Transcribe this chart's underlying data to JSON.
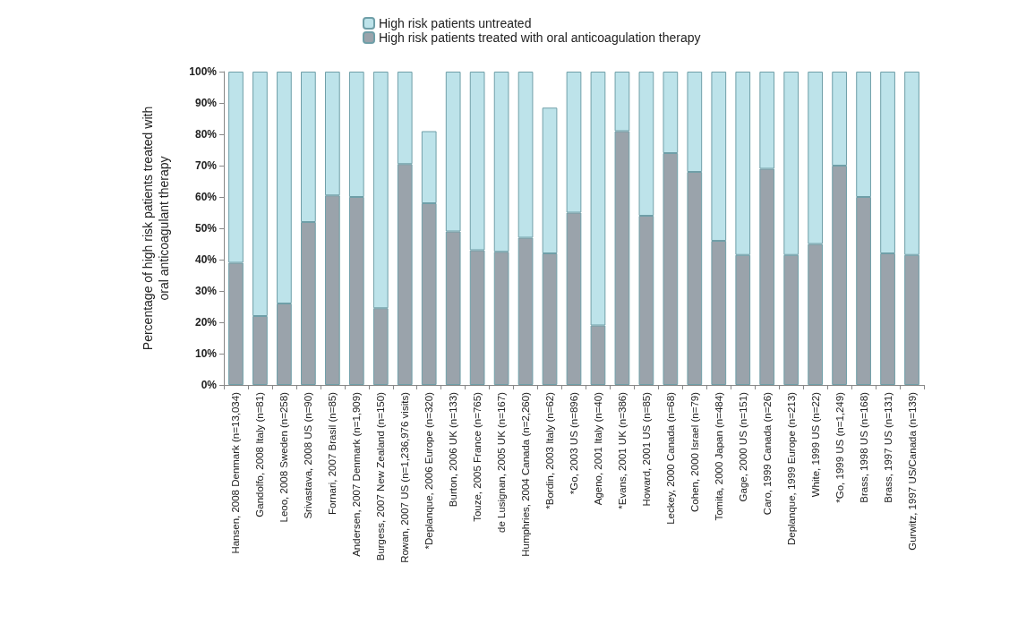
{
  "chart_data": {
    "type": "bar",
    "stacked": true,
    "ylabel": "Percentage of high risk patients treated with\noral anticoagulant therapy",
    "categories": [
      "Hansen, 2008 Denmark (n=13,034)",
      "Gandolfo, 2008 Italy (n=81)",
      "Leoo, 2008 Sweden (n=258)",
      "Srivastava, 2008 US (n=90)",
      "Fornari, 2007 Brasil (n=85)",
      "Andersen, 2007 Denmark (n=1,909)",
      "Burgess, 2007 New Zealand (n=150)",
      "Rowan, 2007 US (n=1,236,976 visits)",
      "*Deplanque, 2006 Europe (n=320)",
      "Burton, 2006 UK (n=133)",
      "Touze, 2005 France (n=765)",
      "de Lusignan, 2005 UK (n=167)",
      "Humphries, 2004 Canada (n=2,260)",
      "*Bordin, 2003 Italy (n=62)",
      "*Go, 2003 US (n=896)",
      "Ageno, 2001 Italy (n=40)",
      "*Evans, 2001 UK (n=386)",
      "Howard, 2001 US (n=85)",
      "Leckey, 2000 Canada (n=68)",
      "Cohen, 2000 Israel (n=79)",
      "Tomita, 2000 Japan (n=484)",
      "Gage, 2000 US (n=151)",
      "Caro, 1999 Canada (n=26)",
      "Deplanque, 1999 Europe (n=213)",
      "White, 1999 US (n=22)",
      "*Go, 1999 US (n=1,249)",
      "Brass, 1998 US (n=168)",
      "Brass, 1997 US (n=131)",
      "Gurwitz, 1997 US/Canada (n=139)"
    ],
    "series": [
      {
        "name": "High risk patients treated with oral anticoagulation therapy",
        "color": "#9aa3ab",
        "values": [
          39,
          22,
          26,
          52,
          60.5,
          60,
          24.5,
          70.5,
          58,
          49,
          43,
          42.5,
          47,
          42,
          55,
          19,
          81,
          54,
          74,
          68,
          46,
          41.5,
          69,
          41.5,
          45,
          70,
          60,
          42,
          41.5
        ]
      },
      {
        "name": "High risk patients untreated",
        "color": "#bde3ea",
        "values": [
          61,
          78,
          74,
          48,
          39.5,
          40,
          75.5,
          29.5,
          23,
          51,
          57,
          57.5,
          53,
          46.5,
          45,
          81,
          19,
          46,
          26,
          32,
          54,
          58.5,
          31,
          58.5,
          55,
          30,
          40,
          58,
          58.5
        ]
      }
    ],
    "ylim": [
      0,
      100
    ],
    "yticks": [
      {
        "value": 0,
        "label": "0%"
      },
      {
        "value": 10,
        "label": "10%"
      },
      {
        "value": 20,
        "label": "20%"
      },
      {
        "value": 30,
        "label": "30%"
      },
      {
        "value": 40,
        "label": "40%"
      },
      {
        "value": 50,
        "label": "50%"
      },
      {
        "value": 60,
        "label": "60%"
      },
      {
        "value": 70,
        "label": "70%"
      },
      {
        "value": 80,
        "label": "80%"
      },
      {
        "value": 90,
        "label": "90%"
      },
      {
        "value": 100,
        "label": "100%"
      }
    ],
    "grid": false,
    "legend": "top"
  }
}
